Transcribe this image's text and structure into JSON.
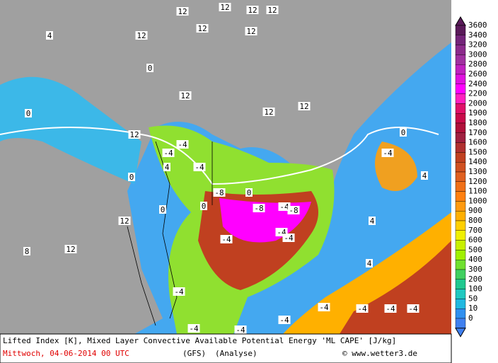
{
  "map": {
    "labels": [
      "12",
      "12",
      "12",
      "12",
      "12",
      "12",
      "4",
      "12",
      "0",
      "12",
      "12",
      "12",
      "12",
      "-4",
      "-4",
      "4",
      "-4",
      "-8",
      "-8",
      "-4",
      "-8",
      "-4",
      "-4",
      "-4",
      "-4",
      "4",
      "0",
      "0",
      "0",
      "0",
      "0",
      "0",
      "12",
      "8",
      "12",
      "-4",
      "-4",
      "-4",
      "-4",
      "-4",
      "-4",
      "-4",
      "-4",
      "4",
      "4"
    ]
  },
  "legend": {
    "labels": [
      "3600",
      "3400",
      "3200",
      "3000",
      "2800",
      "2600",
      "2400",
      "2200",
      "2000",
      "1900",
      "1800",
      "1700",
      "1600",
      "1500",
      "1400",
      "1300",
      "1200",
      "1100",
      "1000",
      "900",
      "800",
      "700",
      "600",
      "500",
      "400",
      "300",
      "200",
      "100",
      "50",
      "10",
      "0"
    ],
    "colors": [
      "#5a1a5a",
      "#74247a",
      "#8c2a8c",
      "#a030a0",
      "#c020c0",
      "#e010e0",
      "#ff00ff",
      "#ff20c0",
      "#e0106a",
      "#c80a4a",
      "#b0103a",
      "#a02040",
      "#b03030",
      "#c04020",
      "#d05020",
      "#e06020",
      "#f07018",
      "#ff8010",
      "#ff9a10",
      "#ffb000",
      "#ffd000",
      "#f0f000",
      "#c8f000",
      "#a0f000",
      "#70e030",
      "#40d060",
      "#20c890",
      "#20c8c0",
      "#20b8e0",
      "#3090f0",
      "#4080f0"
    ]
  },
  "footer": {
    "line1": "Lifted Index [K], Mixed Layer Convective Available Potential Energy 'ML CAPE' [J/kg]",
    "date": "Mittwoch, 04-06-2014  00 UTC",
    "model": "(GFS)",
    "run": "(Analyse)",
    "credit": "© www.wetter3.de"
  }
}
